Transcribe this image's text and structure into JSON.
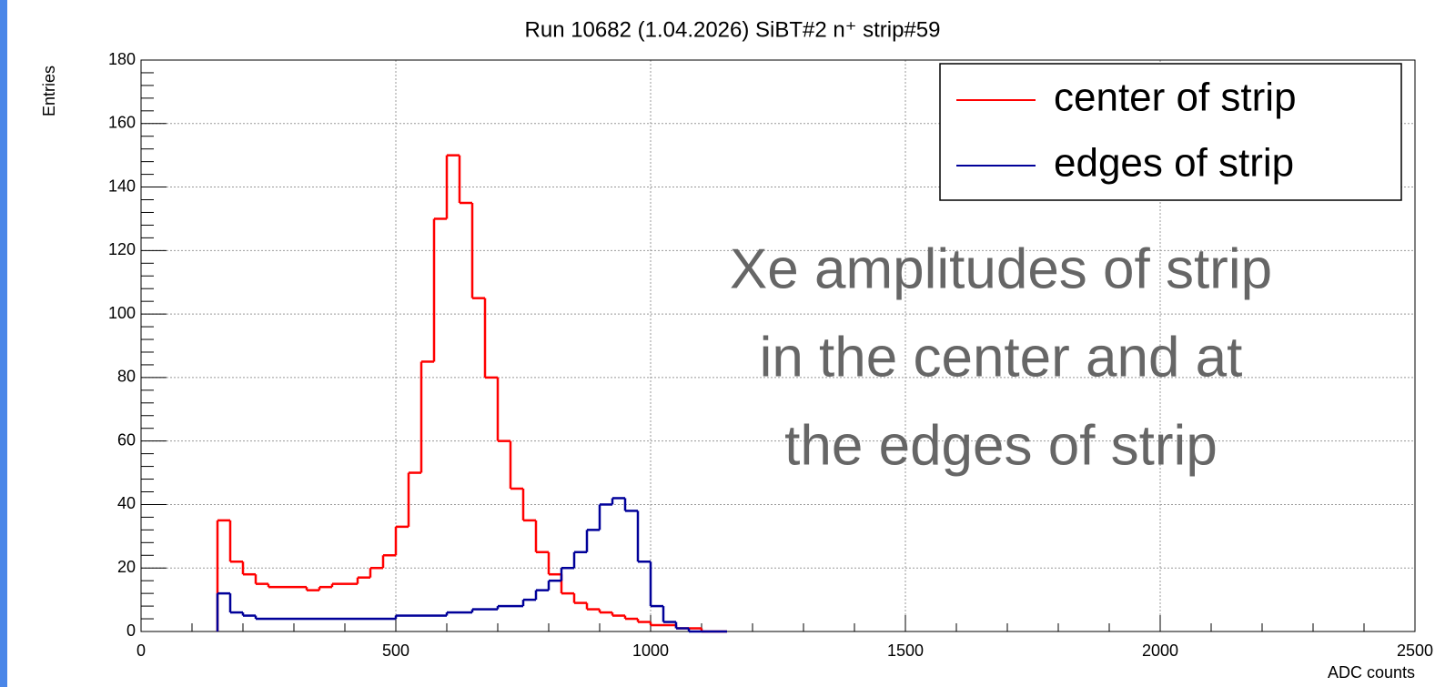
{
  "chart_data": {
    "type": "histogram",
    "title": "Run 10682 (1.04.2026) SiBT#2 n⁺ strip#59",
    "y_label": "Entries",
    "x_label": "ADC counts",
    "annotation": [
      "Xe amplitudes of strip",
      "in the center and at",
      "the edges of strip"
    ],
    "bins": [
      150,
      175,
      200,
      225,
      250,
      275,
      300,
      325,
      350,
      375,
      400,
      425,
      450,
      475,
      500,
      525,
      550,
      575,
      600,
      625,
      650,
      675,
      700,
      725,
      750,
      775,
      800,
      825,
      850,
      875,
      900,
      925,
      950,
      975,
      1000,
      1025,
      1050,
      1075,
      1100,
      1125,
      1150
    ],
    "series": [
      {
        "name": "center of strip",
        "color": "#ff0000",
        "values": [
          35,
          22,
          18,
          15,
          14,
          14,
          14,
          13,
          14,
          15,
          15,
          17,
          20,
          24,
          33,
          50,
          85,
          130,
          150,
          135,
          105,
          80,
          60,
          45,
          35,
          25,
          18,
          12,
          9,
          7,
          6,
          5,
          4,
          3,
          2,
          2,
          1,
          1,
          0,
          0
        ]
      },
      {
        "name": "edges of strip",
        "color": "#000099",
        "values": [
          12,
          6,
          5,
          4,
          4,
          4,
          4,
          4,
          4,
          4,
          4,
          4,
          4,
          4,
          5,
          5,
          5,
          5,
          6,
          6,
          7,
          7,
          8,
          8,
          10,
          13,
          16,
          20,
          25,
          32,
          40,
          42,
          38,
          22,
          8,
          3,
          1,
          0,
          0,
          0
        ]
      }
    ],
    "xlim": [
      0,
      2500
    ],
    "xticks": [
      0,
      500,
      1000,
      1500,
      2000,
      2500
    ],
    "ylim": [
      0,
      180
    ],
    "yticks": [
      0,
      20,
      40,
      60,
      80,
      100,
      120,
      140,
      160,
      180
    ],
    "grid": true,
    "legend": "top-right"
  }
}
